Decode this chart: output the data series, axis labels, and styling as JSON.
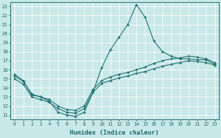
{
  "xlabel": "Humidex (Indice chaleur)",
  "bg_color": "#c9e8e8",
  "line_color": "#1a6b6b",
  "xlim": [
    -0.5,
    23.5
  ],
  "ylim": [
    10.5,
    23.5
  ],
  "xticks": [
    0,
    1,
    2,
    3,
    4,
    5,
    6,
    7,
    8,
    9,
    10,
    11,
    12,
    13,
    14,
    15,
    16,
    17,
    18,
    19,
    20,
    21,
    22,
    23
  ],
  "yticks": [
    11,
    12,
    13,
    14,
    15,
    16,
    17,
    18,
    19,
    20,
    21,
    22,
    23
  ],
  "series": {
    "max": {
      "x": [
        0,
        1,
        2,
        3,
        4,
        5,
        6,
        7,
        8,
        9,
        10,
        11,
        12,
        13,
        14,
        15,
        16,
        17,
        18,
        19,
        20,
        21,
        22,
        23
      ],
      "y": [
        15.5,
        14.8,
        13.2,
        13.0,
        12.5,
        11.3,
        11.0,
        10.85,
        11.3,
        13.5,
        16.2,
        18.2,
        19.6,
        21.0,
        23.2,
        21.8,
        19.2,
        18.0,
        17.5,
        17.2,
        17.2,
        17.1,
        17.1,
        16.6
      ]
    },
    "mean": {
      "x": [
        0,
        1,
        2,
        3,
        4,
        5,
        6,
        7,
        8,
        9,
        10,
        11,
        12,
        13,
        14,
        15,
        16,
        17,
        18,
        19,
        20,
        21,
        22,
        23
      ],
      "y": [
        15.3,
        14.7,
        13.3,
        13.0,
        12.7,
        12.0,
        11.6,
        11.5,
        12.0,
        13.8,
        14.8,
        15.2,
        15.5,
        15.7,
        16.0,
        16.3,
        16.7,
        17.0,
        17.2,
        17.3,
        17.5,
        17.4,
        17.2,
        16.8
      ]
    },
    "min": {
      "x": [
        0,
        1,
        2,
        3,
        4,
        5,
        6,
        7,
        8,
        9,
        10,
        11,
        12,
        13,
        14,
        15,
        16,
        17,
        18,
        19,
        20,
        21,
        22,
        23
      ],
      "y": [
        15.0,
        14.4,
        13.0,
        12.7,
        12.4,
        11.7,
        11.3,
        11.2,
        11.7,
        13.5,
        14.5,
        14.8,
        15.1,
        15.3,
        15.6,
        15.8,
        16.1,
        16.4,
        16.6,
        16.8,
        17.0,
        16.9,
        16.8,
        16.5
      ]
    }
  },
  "tick_fontsize": 5.0,
  "xlabel_fontsize": 6.5
}
